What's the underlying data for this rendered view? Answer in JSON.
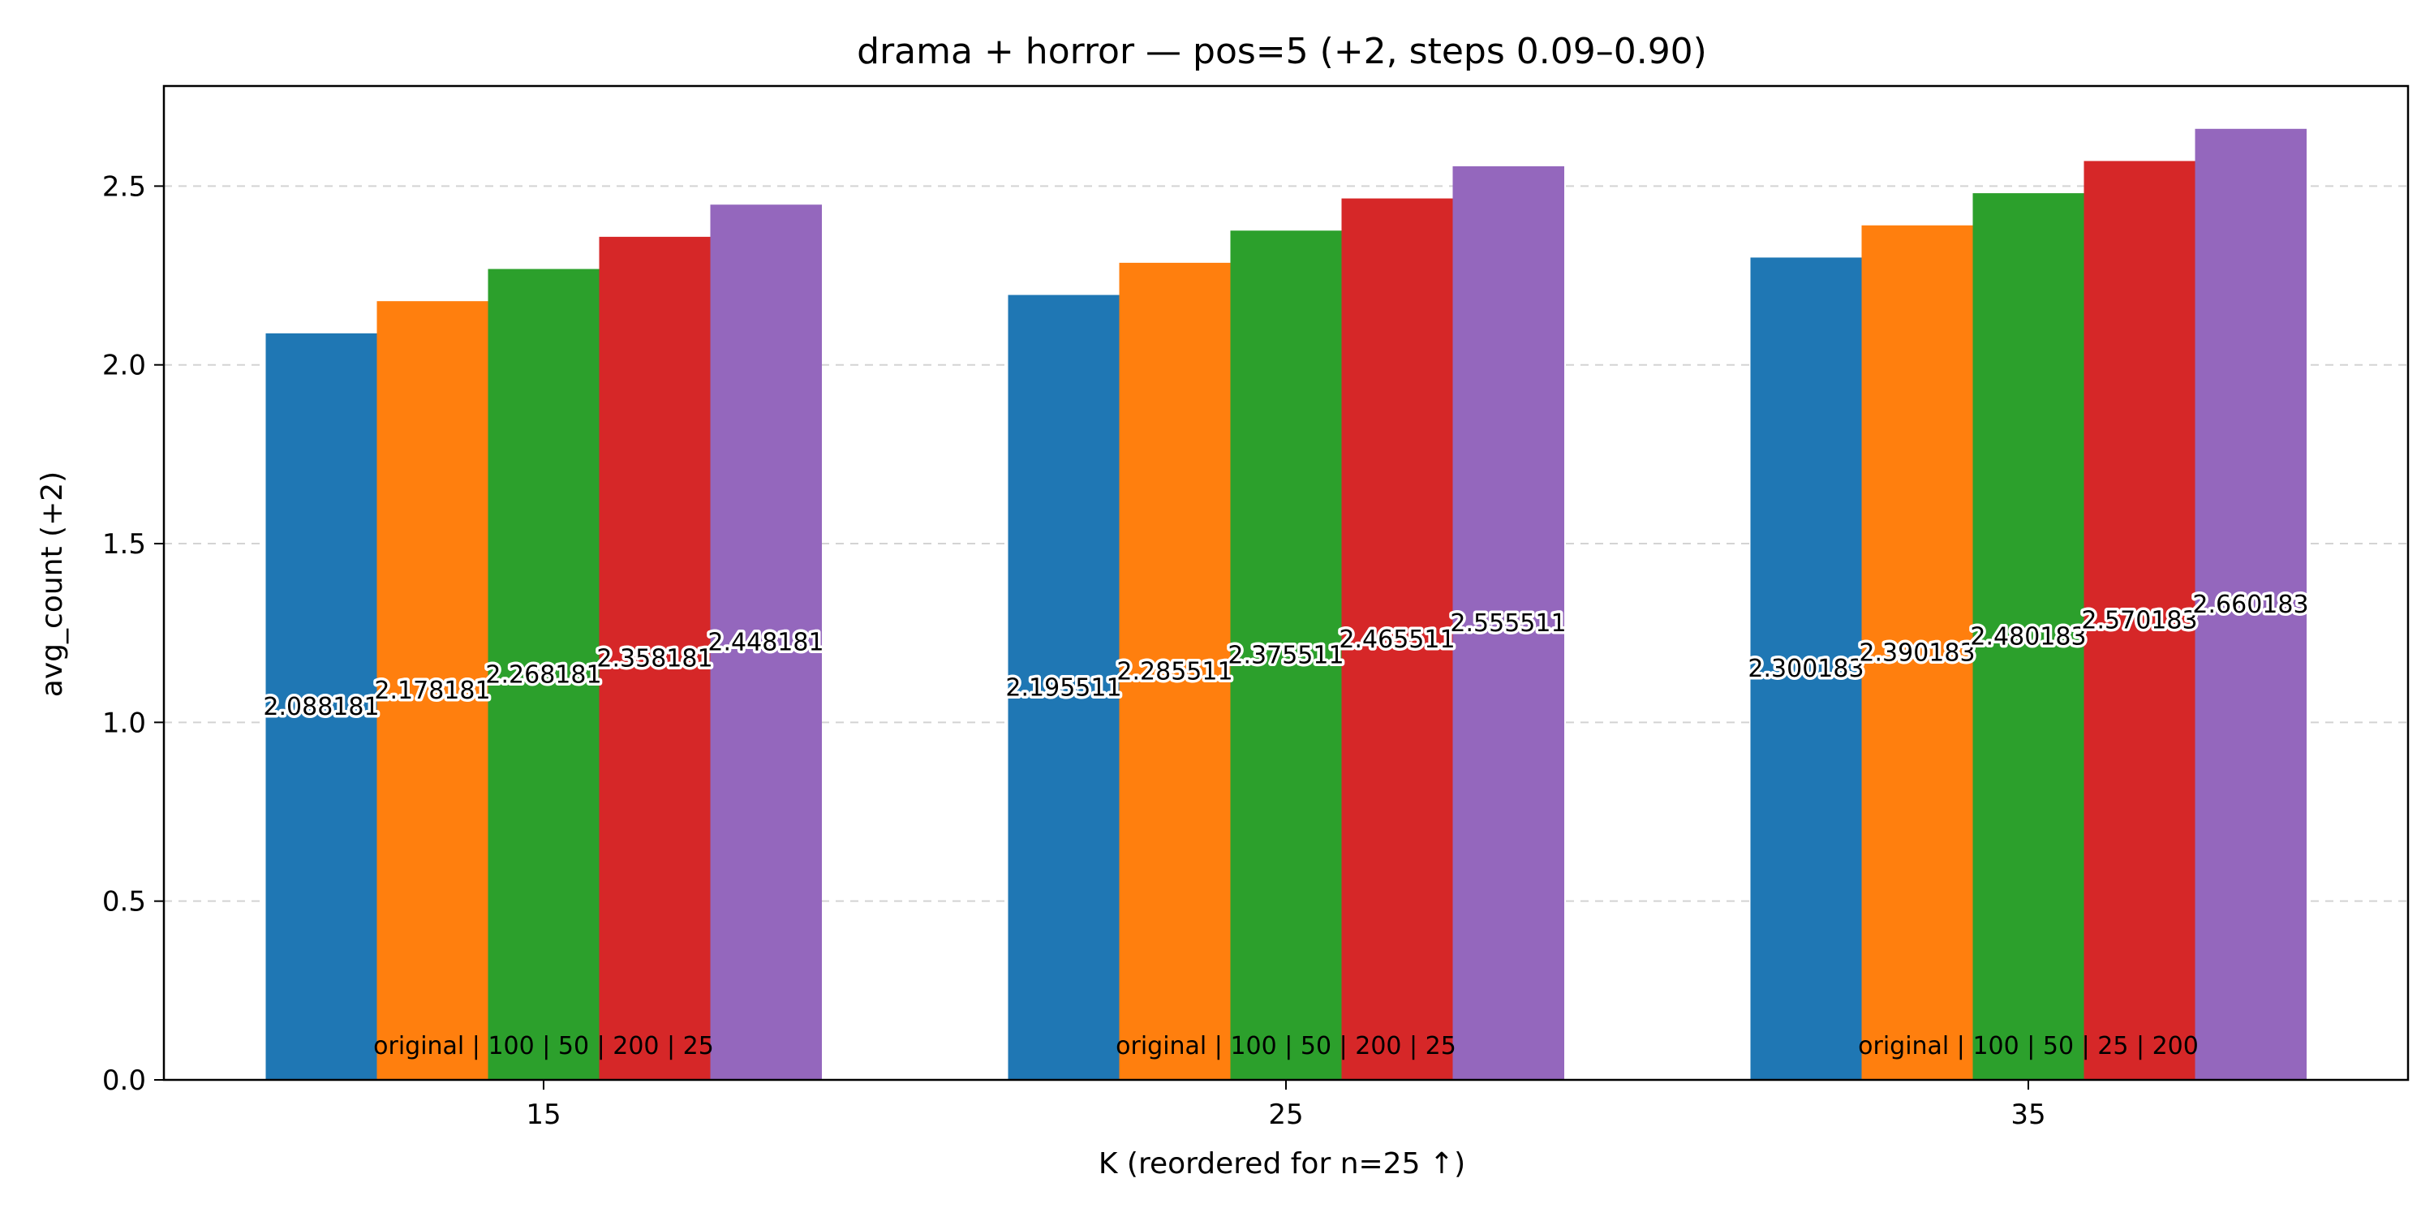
{
  "chart_data": {
    "type": "bar",
    "title": "drama + horror — pos=5 (+2, steps 0.09–0.90)",
    "xlabel": "K (reordered for n=25 ↑)",
    "ylabel": "avg_count (+2)",
    "ylim": [
      0.0,
      2.78
    ],
    "yticks": [
      "0.0",
      "0.5",
      "1.0",
      "1.5",
      "2.0",
      "2.5"
    ],
    "grid": "horizontal dashed",
    "categories": [
      "15",
      "25",
      "35"
    ],
    "colors": [
      "#1f77b4",
      "#ff7f0e",
      "#2ca02c",
      "#d62728",
      "#9467bd"
    ],
    "groups": [
      {
        "k": "15",
        "order_label": "original | 100 | 50 | 200 | 25",
        "values": [
          2.088181,
          2.178181,
          2.268181,
          2.358181,
          2.448181
        ],
        "labels": [
          "2.088181",
          "2.178181",
          "2.268181",
          "2.358181",
          "2.448181"
        ]
      },
      {
        "k": "25",
        "order_label": "original | 100 | 50 | 200 | 25",
        "values": [
          2.195511,
          2.285511,
          2.375511,
          2.465511,
          2.555511
        ],
        "labels": [
          "2.195511",
          "2.285511",
          "2.375511",
          "2.465511",
          "2.555511"
        ]
      },
      {
        "k": "35",
        "order_label": "original | 100 | 50 | 25 | 200",
        "values": [
          2.300183,
          2.390183,
          2.480183,
          2.570183,
          2.660183
        ],
        "labels": [
          "2.300183",
          "2.390183",
          "2.480183",
          "2.570183",
          "2.660183"
        ]
      }
    ]
  }
}
